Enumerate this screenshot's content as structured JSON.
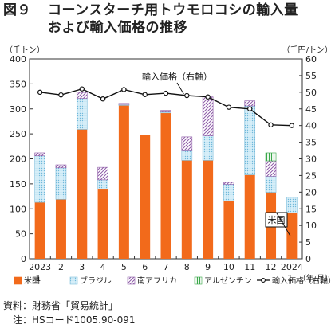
{
  "figure": {
    "number": "図９",
    "title_line1": "コーンスターチ用トウモロコシの輸入量",
    "title_line2": "および輸入価格の推移"
  },
  "chart_data": {
    "type": "bar",
    "stacked": true,
    "left_unit": "（千トン）",
    "right_unit": "（千円/トン）",
    "ylim": [
      0,
      400
    ],
    "y2lim": [
      0,
      60
    ],
    "yticks": [
      0,
      50,
      100,
      150,
      200,
      250,
      300,
      350,
      400
    ],
    "y2ticks": [
      0,
      5,
      10,
      15,
      20,
      25,
      30,
      35,
      40,
      45,
      50,
      55,
      60
    ],
    "categories": [
      "2023",
      "2",
      "3",
      "4",
      "5",
      "6",
      "7",
      "8",
      "9",
      "10",
      "11",
      "12",
      "2024"
    ],
    "category_sublabels": [
      ".1",
      "",
      "",
      "",
      "",
      "",
      "",
      "",
      "",
      "",
      "",
      "",
      ".1"
    ],
    "x_unit": "（年.月）",
    "series": [
      {
        "name": "米国",
        "color": "#f26a1b",
        "pattern": "solid",
        "values": [
          113,
          119,
          259,
          139,
          307,
          248,
          292,
          197,
          197,
          116,
          168,
          133,
          92
        ]
      },
      {
        "name": "ブラジル",
        "color": "#9fd3ea",
        "pattern": "dots",
        "values": [
          93,
          63,
          62,
          19,
          2,
          0,
          2,
          19,
          49,
          33,
          138,
          32,
          31
        ]
      },
      {
        "name": "南アフリカ",
        "color": "#8e5ca8",
        "pattern": "diagonal",
        "values": [
          6,
          6,
          12,
          25,
          2,
          0,
          3,
          28,
          78,
          4,
          10,
          31,
          0
        ]
      },
      {
        "name": "アルゼンチン",
        "color": "#3aa84a",
        "pattern": "vertical",
        "values": [
          0,
          0,
          0,
          0,
          0,
          0,
          0,
          0,
          0,
          0,
          0,
          16,
          0
        ]
      }
    ],
    "line": {
      "name": "輸入価格（右軸）",
      "axis": "right",
      "color": "#111111",
      "values": [
        50.0,
        49.2,
        51.0,
        48.0,
        50.8,
        49.3,
        49.7,
        49.0,
        48.6,
        45.5,
        45.0,
        40.2,
        40.0
      ]
    },
    "annotations": {
      "price_label": "輸入価格（右軸）",
      "us_label": "米国"
    },
    "legend_position": "bottom",
    "grid": false
  },
  "source": {
    "line1": "資料：財務省「貿易統計」",
    "line2": "　注：HSコード1005.90-091"
  }
}
